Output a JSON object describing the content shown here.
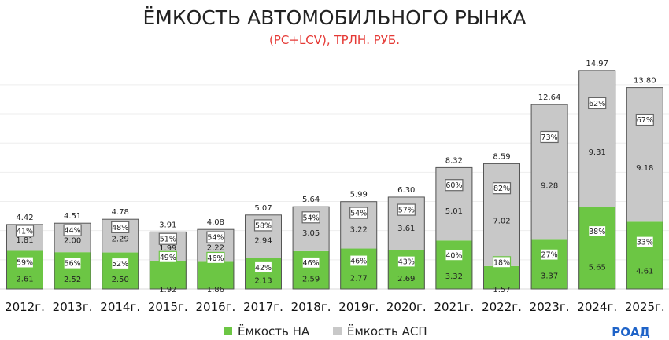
{
  "chart_data": {
    "type": "bar",
    "stacked": true,
    "title": "ЁМКОСТЬ АВТОМОБИЛЬНОГО РЫНКА",
    "subtitle": "(PC+LCV), ТРЛН. РУБ.",
    "categories": [
      "2012г.",
      "2013г.",
      "2014г.",
      "2015г.",
      "2016г.",
      "2017г.",
      "2018г.",
      "2019г.",
      "2020г.",
      "2021г.",
      "2022г.",
      "2023г.",
      "2024г.",
      "2025г."
    ],
    "series": [
      {
        "name": "Ёмкость НА",
        "color": "#6cc644",
        "values": [
          2.61,
          2.52,
          2.5,
          1.92,
          1.86,
          2.13,
          2.59,
          2.77,
          2.69,
          3.32,
          1.57,
          3.37,
          5.65,
          4.61
        ],
        "value_labels": [
          "2.61",
          "2.52",
          "2.50",
          "1.92",
          "1.86",
          "2.13",
          "2.59",
          "2.77",
          "2.69",
          "3.32",
          "1.57",
          "3.37",
          "5.65",
          "4.61"
        ],
        "share_labels": [
          "59%",
          "56%",
          "52%",
          "49%",
          "46%",
          "42%",
          "46%",
          "46%",
          "43%",
          "40%",
          "18%",
          "27%",
          "38%",
          "33%"
        ]
      },
      {
        "name": "Ёмкость АСП",
        "color": "#c8c8c8",
        "values": [
          1.81,
          2.0,
          2.29,
          1.99,
          2.22,
          2.94,
          3.05,
          3.22,
          3.61,
          5.01,
          7.02,
          9.28,
          9.31,
          9.18
        ],
        "value_labels": [
          "1.81",
          "2.00",
          "2.29",
          "1.99",
          "2.22",
          "2.94",
          "3.05",
          "3.22",
          "3.61",
          "5.01",
          "7.02",
          "9.28",
          "9.31",
          "9.18"
        ],
        "share_labels": [
          "41%",
          "44%",
          "48%",
          "51%",
          "54%",
          "58%",
          "54%",
          "54%",
          "57%",
          "60%",
          "82%",
          "73%",
          "62%",
          "67%"
        ]
      }
    ],
    "totals": [
      4.42,
      4.51,
      4.78,
      3.91,
      4.08,
      5.07,
      5.64,
      5.99,
      6.3,
      8.32,
      8.59,
      12.64,
      14.97,
      13.8
    ],
    "total_labels": [
      "4.42",
      "4.51",
      "4.78",
      "3.91",
      "4.08",
      "5.07",
      "5.64",
      "5.99",
      "6.30",
      "8.32",
      "8.59",
      "12.64",
      "14.97",
      "13.80"
    ],
    "ylim": [
      0,
      15.5
    ],
    "grid": true,
    "legend_position": "bottom-center"
  },
  "logo_text": "РОАД"
}
